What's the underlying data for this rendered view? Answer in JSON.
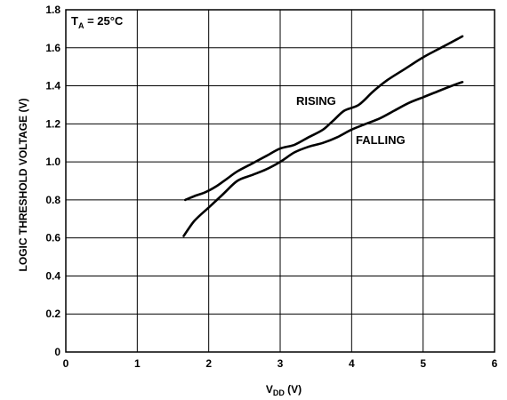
{
  "chart_data": {
    "type": "line",
    "xlabel_main": "V",
    "xlabel_sub": "DD",
    "xlabel_unit": " (V)",
    "ylabel": "LOGIC THRESHOLD VOLTAGE (V)",
    "xlim": [
      0,
      6
    ],
    "ylim": [
      0,
      1.8
    ],
    "grid": true,
    "x_ticks": [
      "0",
      "1",
      "2",
      "3",
      "4",
      "5",
      "6"
    ],
    "y_ticks": [
      "0",
      "0.2",
      "0.4",
      "0.6",
      "0.8",
      "1.0",
      "1.2",
      "1.4",
      "1.6",
      "1.8"
    ],
    "condition_main": "T",
    "condition_sub": "A",
    "condition_rest": " = 25°C",
    "series": [
      {
        "name": "RISING",
        "x": [
          1.67,
          1.8,
          1.95,
          2.1,
          2.25,
          2.4,
          2.6,
          2.8,
          3.0,
          3.2,
          3.4,
          3.6,
          3.75,
          3.9,
          4.1,
          4.3,
          4.5,
          4.75,
          5.0,
          5.2,
          5.35,
          5.55
        ],
        "y": [
          0.8,
          0.82,
          0.84,
          0.87,
          0.91,
          0.95,
          0.99,
          1.03,
          1.07,
          1.09,
          1.13,
          1.17,
          1.22,
          1.27,
          1.3,
          1.37,
          1.43,
          1.49,
          1.55,
          1.59,
          1.62,
          1.66
        ]
      },
      {
        "name": "FALLING",
        "x": [
          1.65,
          1.8,
          2.0,
          2.2,
          2.4,
          2.6,
          2.8,
          3.0,
          3.2,
          3.4,
          3.6,
          3.8,
          4.0,
          4.2,
          4.4,
          4.6,
          4.8,
          5.0,
          5.2,
          5.4,
          5.55
        ],
        "y": [
          0.61,
          0.69,
          0.76,
          0.83,
          0.9,
          0.93,
          0.96,
          1.0,
          1.05,
          1.08,
          1.1,
          1.13,
          1.17,
          1.2,
          1.23,
          1.27,
          1.31,
          1.34,
          1.37,
          1.4,
          1.42
        ]
      }
    ],
    "annotations": [
      "RISING",
      "FALLING"
    ],
    "line_color": "#000000"
  }
}
